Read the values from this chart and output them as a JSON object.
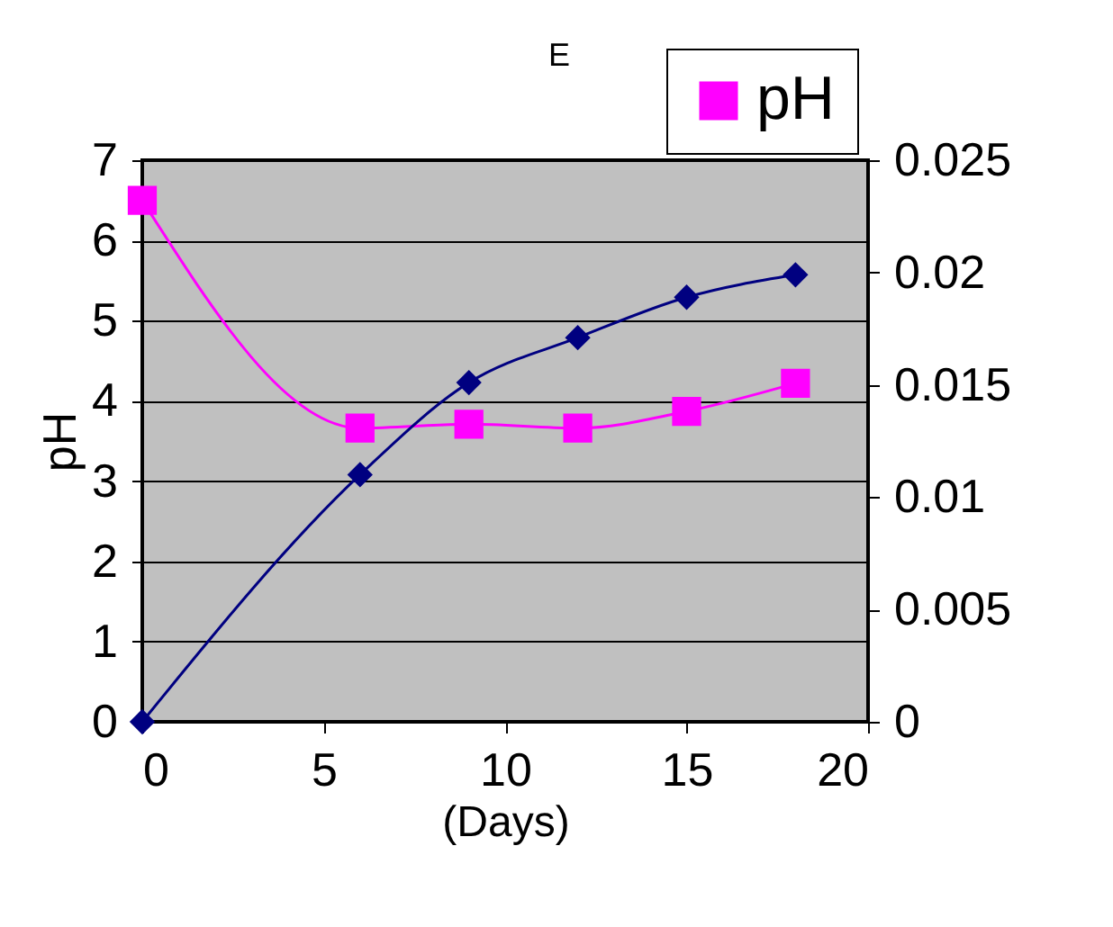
{
  "chart_data": {
    "type": "line",
    "title": "E",
    "xlabel": "(Days)",
    "ylabel": "pH",
    "x": [
      0,
      6,
      9,
      12,
      15,
      18
    ],
    "series": [
      {
        "name": "pH",
        "color": "#ff00ff",
        "marker": "square",
        "values": [
          6.5,
          3.66,
          3.71,
          3.66,
          3.87,
          4.22
        ]
      },
      {
        "color": "#000080",
        "marker": "diamond",
        "axis": "y2",
        "values": [
          0,
          0.011,
          0.0151,
          0.0171,
          0.0189,
          0.0199
        ]
      }
    ],
    "xlim": [
      0,
      20
    ],
    "xticks": [
      0,
      5,
      10,
      15,
      20
    ],
    "ylim": [
      0,
      7
    ],
    "yticks": [
      0,
      1,
      2,
      3,
      4,
      5,
      6,
      7
    ],
    "y2lim": [
      0,
      0.025
    ],
    "y2ticks": [
      0,
      0.005,
      0.01,
      0.015,
      0.02,
      0.025
    ],
    "grid": "y",
    "legend": "top right",
    "line_style": "solid"
  }
}
